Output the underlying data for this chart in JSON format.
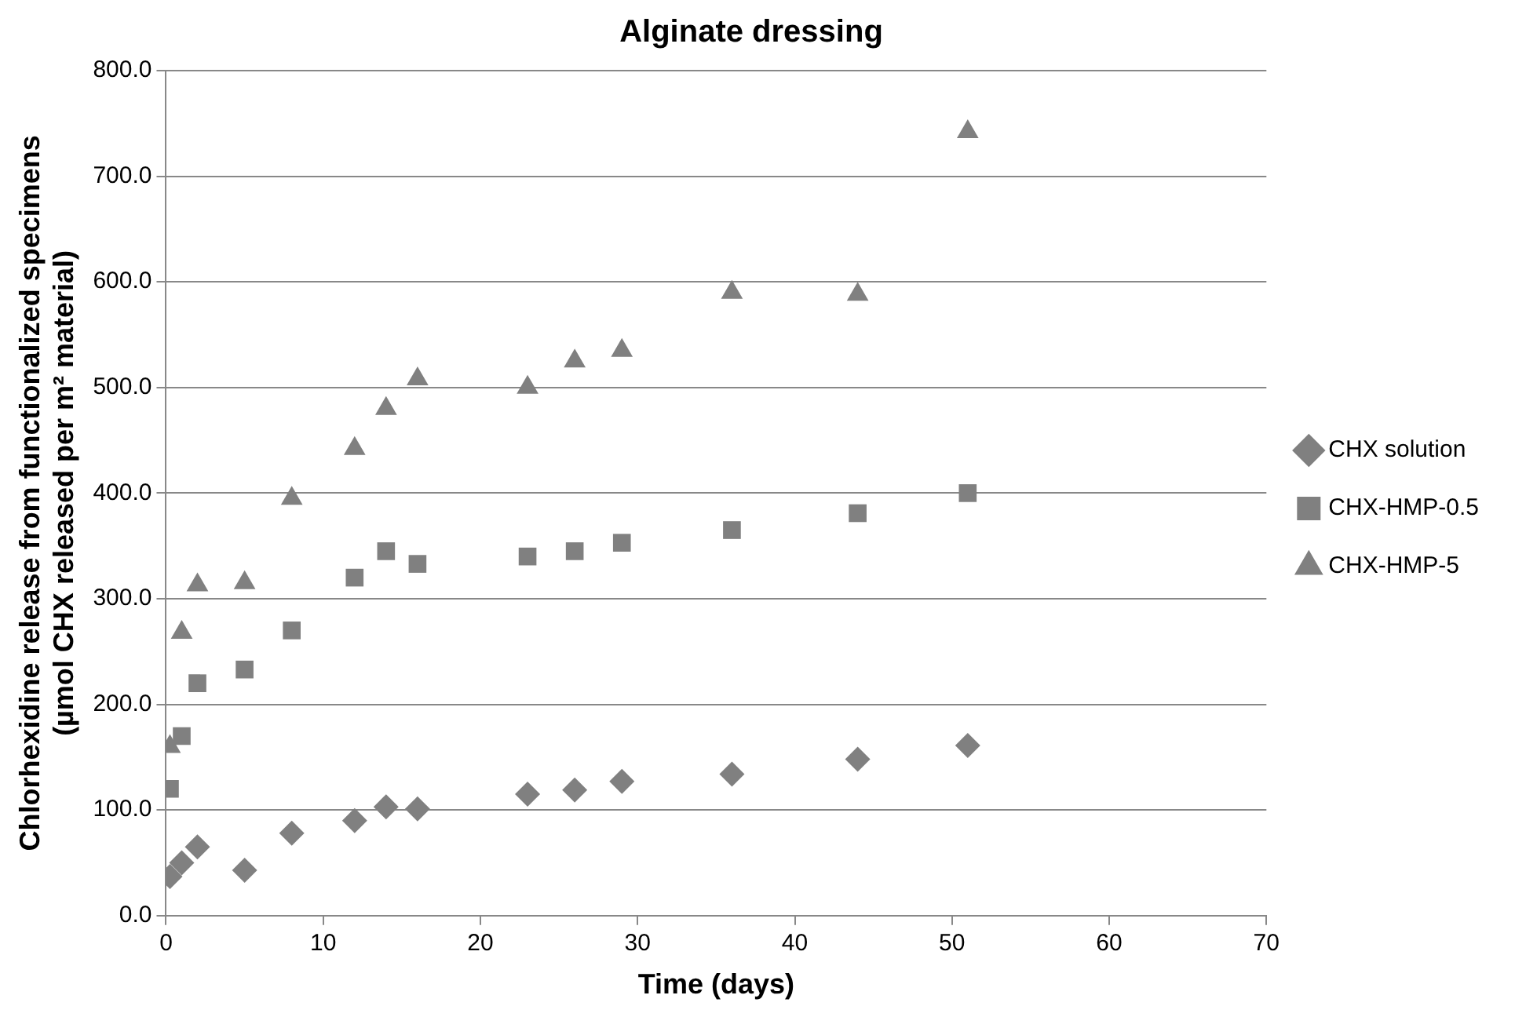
{
  "chart_data": {
    "type": "scatter",
    "title": "Alginate dressing",
    "xlabel": "Time (days)",
    "ylabel": "Chlorhexidine release from functionalized specimens\n(µmol CHX released per m² material)",
    "x": [
      0.25,
      1,
      2,
      5,
      8,
      12,
      14,
      16,
      23,
      26,
      29,
      36,
      44,
      51
    ],
    "series": [
      {
        "name": "CHX solution",
        "color": "#808080",
        "marker": "diamond",
        "values": [
          37,
          50,
          65,
          43,
          78,
          90,
          103,
          101,
          115,
          119,
          127,
          134,
          148,
          161
        ]
      },
      {
        "name": "CHX-HMP-0.5",
        "color": "#808080",
        "marker": "square",
        "values": [
          120,
          170,
          220,
          233,
          270,
          320,
          345,
          333,
          340,
          345,
          353,
          365,
          381,
          400
        ]
      },
      {
        "name": "CHX-HMP-5",
        "color": "#808080",
        "marker": "triangle",
        "values": [
          160,
          268,
          313,
          315,
          395,
          442,
          480,
          508,
          500,
          525,
          535,
          590,
          588,
          742
        ]
      }
    ],
    "xlim": [
      0,
      70
    ],
    "xticks": [
      0,
      10,
      20,
      30,
      40,
      50,
      60,
      70
    ],
    "ylim": [
      0,
      800
    ],
    "yticks": [
      {
        "value": 0,
        "label": "0.0"
      },
      {
        "value": 100,
        "label": "100.0"
      },
      {
        "value": 200,
        "label": "200.0"
      },
      {
        "value": 300,
        "label": "300.0"
      },
      {
        "value": 400,
        "label": "400.0"
      },
      {
        "value": 500,
        "label": "500.0"
      },
      {
        "value": 600,
        "label": "600.0"
      },
      {
        "value": 700,
        "label": "700.0"
      },
      {
        "value": 800,
        "label": "800.0"
      }
    ],
    "grid": "y",
    "legend": "right"
  }
}
